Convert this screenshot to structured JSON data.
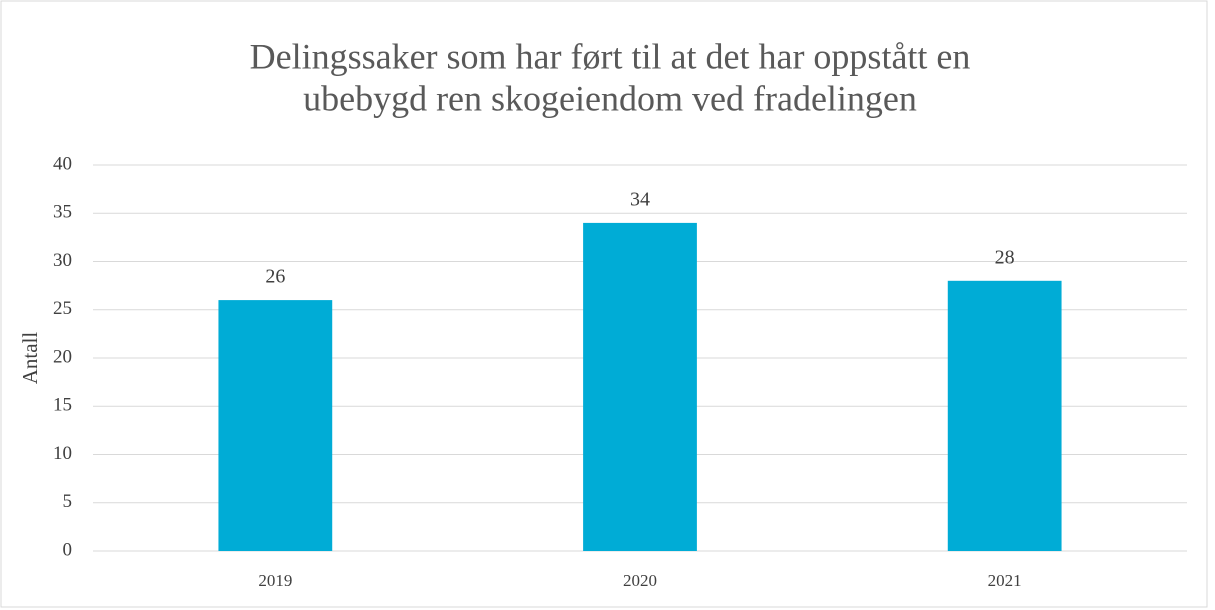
{
  "chart_data": {
    "type": "bar",
    "title": [
      "Delingssaker som har ført til at det har oppstått en",
      "ubebygd ren skogeiendom ved fradelingen"
    ],
    "y_label": "Antall",
    "categories": [
      "2019",
      "2020",
      "2021"
    ],
    "values": [
      26,
      34,
      28
    ],
    "color": "#00acd6",
    "ylim": [
      0,
      40
    ],
    "yticks": [
      0,
      5,
      10,
      15,
      20,
      25,
      30,
      35,
      40
    ],
    "grid": true,
    "data_labels": true
  }
}
